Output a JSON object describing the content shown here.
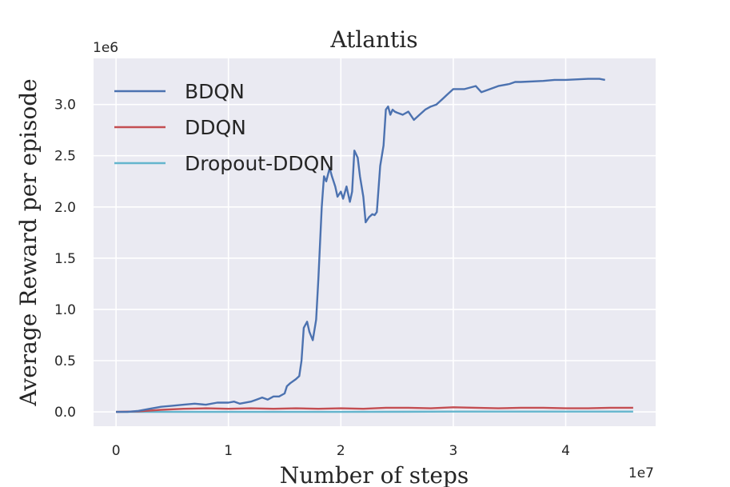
{
  "chart_data": {
    "type": "line",
    "title": "Atlantis",
    "xlabel": "Number of steps",
    "ylabel": "Average Reward per episode",
    "x_offset_label": "1e7",
    "y_offset_label": "1e6",
    "xlim": [
      -0.2,
      4.8
    ],
    "ylim": [
      -0.14,
      3.45
    ],
    "xticks": [
      0,
      1,
      2,
      3,
      4
    ],
    "xtick_labels": [
      "0",
      "1",
      "2",
      "3",
      "4"
    ],
    "yticks": [
      0.0,
      0.5,
      1.0,
      1.5,
      2.0,
      2.5,
      3.0
    ],
    "ytick_labels": [
      "0.0",
      "0.5",
      "1.0",
      "1.5",
      "2.0",
      "2.5",
      "3.0"
    ],
    "grid": true,
    "legend_position": "top-left",
    "colors": {
      "background": "#eaeaf2",
      "grid": "#ffffff"
    },
    "series": [
      {
        "name": "BDQN",
        "color": "#4c72b0",
        "x": [
          0,
          0.1,
          0.2,
          0.3,
          0.4,
          0.5,
          0.6,
          0.7,
          0.8,
          0.9,
          1.0,
          1.05,
          1.1,
          1.2,
          1.25,
          1.3,
          1.35,
          1.4,
          1.45,
          1.5,
          1.52,
          1.55,
          1.6,
          1.63,
          1.65,
          1.67,
          1.7,
          1.72,
          1.75,
          1.78,
          1.8,
          1.83,
          1.85,
          1.87,
          1.9,
          1.92,
          1.95,
          1.97,
          2.0,
          2.02,
          2.05,
          2.08,
          2.1,
          2.12,
          2.15,
          2.17,
          2.2,
          2.22,
          2.25,
          2.28,
          2.3,
          2.32,
          2.35,
          2.38,
          2.4,
          2.42,
          2.44,
          2.46,
          2.48,
          2.5,
          2.55,
          2.6,
          2.65,
          2.7,
          2.75,
          2.8,
          2.85,
          2.9,
          2.95,
          3.0,
          3.1,
          3.2,
          3.25,
          3.3,
          3.4,
          3.5,
          3.55,
          3.6,
          3.8,
          3.9,
          4.0,
          4.2,
          4.3,
          4.35
        ],
        "y": [
          0.0,
          0.0,
          0.01,
          0.03,
          0.05,
          0.06,
          0.07,
          0.08,
          0.07,
          0.09,
          0.09,
          0.1,
          0.08,
          0.1,
          0.12,
          0.14,
          0.12,
          0.15,
          0.15,
          0.18,
          0.25,
          0.28,
          0.32,
          0.35,
          0.5,
          0.82,
          0.88,
          0.78,
          0.7,
          0.9,
          1.3,
          2.0,
          2.3,
          2.25,
          2.38,
          2.3,
          2.2,
          2.1,
          2.15,
          2.08,
          2.2,
          2.05,
          2.15,
          2.55,
          2.48,
          2.3,
          2.1,
          1.85,
          1.9,
          1.93,
          1.92,
          1.95,
          2.4,
          2.6,
          2.95,
          2.98,
          2.9,
          2.95,
          2.93,
          2.92,
          2.9,
          2.93,
          2.85,
          2.9,
          2.95,
          2.98,
          3.0,
          3.05,
          3.1,
          3.15,
          3.15,
          3.18,
          3.12,
          3.14,
          3.18,
          3.2,
          3.22,
          3.22,
          3.23,
          3.24,
          3.24,
          3.25,
          3.25,
          3.24
        ]
      },
      {
        "name": "DDQN",
        "color": "#c44e52",
        "x": [
          0,
          0.2,
          0.4,
          0.6,
          0.8,
          1.0,
          1.2,
          1.4,
          1.6,
          1.8,
          2.0,
          2.2,
          2.4,
          2.6,
          2.8,
          3.0,
          3.2,
          3.4,
          3.6,
          3.8,
          4.0,
          4.2,
          4.4,
          4.6
        ],
        "y": [
          0.0,
          0.005,
          0.02,
          0.03,
          0.035,
          0.03,
          0.035,
          0.03,
          0.035,
          0.03,
          0.035,
          0.03,
          0.04,
          0.04,
          0.035,
          0.045,
          0.04,
          0.035,
          0.04,
          0.04,
          0.035,
          0.035,
          0.04,
          0.04
        ]
      },
      {
        "name": "Dropout-DDQN",
        "color": "#64b5cd",
        "x": [
          0,
          1.0,
          2.0,
          3.0,
          4.0,
          4.6
        ],
        "y": [
          0.0,
          0.0,
          0.0,
          0.003,
          0.003,
          0.003
        ]
      }
    ]
  }
}
